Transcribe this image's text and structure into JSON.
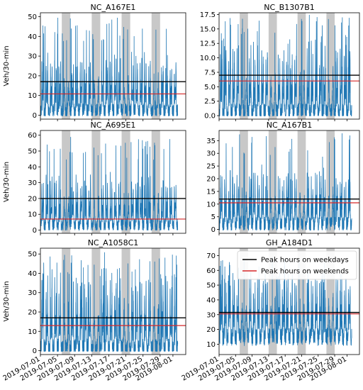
{
  "chart_data": [
    {
      "type": "line",
      "title": "NC_A167E1",
      "ylabel": "Veh/30-min",
      "ylim": [
        -2,
        52
      ],
      "yticks": [
        0,
        10,
        20,
        30,
        40,
        50
      ],
      "amp": 22,
      "base": 2,
      "spike": 50,
      "series": [
        {
          "name": "Peak hours on weekdays",
          "value": 17
        },
        {
          "name": "Peak hours on weekends",
          "value": 10.8
        }
      ]
    },
    {
      "type": "line",
      "title": "NC_B1307B1",
      "ylabel": "",
      "ylim": [
        -0.6,
        17.8
      ],
      "yticks": [
        0.0,
        2.5,
        5.0,
        7.5,
        10.0,
        12.5,
        15.0,
        17.5
      ],
      "amp": 9,
      "base": 0.5,
      "spike": 17.5,
      "series": [
        {
          "name": "Peak hours on weekdays",
          "value": 7.0
        },
        {
          "name": "Peak hours on weekends",
          "value": 6.0
        }
      ]
    },
    {
      "type": "line",
      "title": "NC_A695E1",
      "ylabel": "Veh/30-min",
      "ylim": [
        -2,
        63
      ],
      "yticks": [
        0,
        10,
        20,
        30,
        40,
        50,
        60
      ],
      "amp": 24,
      "base": 3,
      "spike": 59,
      "series": [
        {
          "name": "Peak hours on weekdays",
          "value": 20
        },
        {
          "name": "Peak hours on weekends",
          "value": 7
        }
      ]
    },
    {
      "type": "line",
      "title": "NC_A167B1",
      "ylabel": "",
      "ylim": [
        -1.5,
        39
      ],
      "yticks": [
        0,
        5,
        10,
        15,
        20,
        25,
        30,
        35
      ],
      "amp": 17,
      "base": 2,
      "spike": 38,
      "series": [
        {
          "name": "Peak hours on weekdays",
          "value": 12
        },
        {
          "name": "Peak hours on weekends",
          "value": 10.5
        }
      ]
    },
    {
      "type": "line",
      "title": "NC_A1058C1",
      "ylabel": "Veh/30-min",
      "ylim": [
        -2,
        53
      ],
      "yticks": [
        0,
        10,
        20,
        30,
        40,
        50
      ],
      "amp": 30,
      "base": 1,
      "spike": 51,
      "series": [
        {
          "name": "Peak hours on weekdays",
          "value": 17
        },
        {
          "name": "Peak hours on weekends",
          "value": 13
        }
      ]
    },
    {
      "type": "line",
      "title": "GH_A184D1",
      "ylabel": "",
      "ylim": [
        3,
        75
      ],
      "yticks": [
        10,
        20,
        30,
        40,
        50,
        60,
        70
      ],
      "amp": 35,
      "base": 15,
      "spike": 70,
      "series": [
        {
          "name": "Peak hours on weekdays",
          "value": 31.5
        },
        {
          "name": "Peak hours on weekends",
          "value": 30.5
        }
      ]
    }
  ],
  "xaxis": {
    "start": "2019-07-01",
    "end": "2019-08-04",
    "ticks": [
      "2019-07-01",
      "2019-07-05",
      "2019-07-09",
      "2019-07-13",
      "2019-07-17",
      "2019-07-21",
      "2019-07-25",
      "2019-07-29",
      "2019-08-01"
    ]
  },
  "weekend_bands": [
    [
      "2019-07-06",
      "2019-07-08"
    ],
    [
      "2019-07-13",
      "2019-07-15"
    ],
    [
      "2019-07-20",
      "2019-07-22"
    ],
    [
      "2019-07-27",
      "2019-07-29"
    ]
  ],
  "legend": {
    "position": "upper-right",
    "panel": 5,
    "entries": [
      "Peak hours on weekdays",
      "Peak hours on weekends"
    ]
  },
  "colors": {
    "series": "#1f77b4",
    "weekday_line": "#000000",
    "weekend_line": "#d62728",
    "band": "#c8c8c8"
  }
}
